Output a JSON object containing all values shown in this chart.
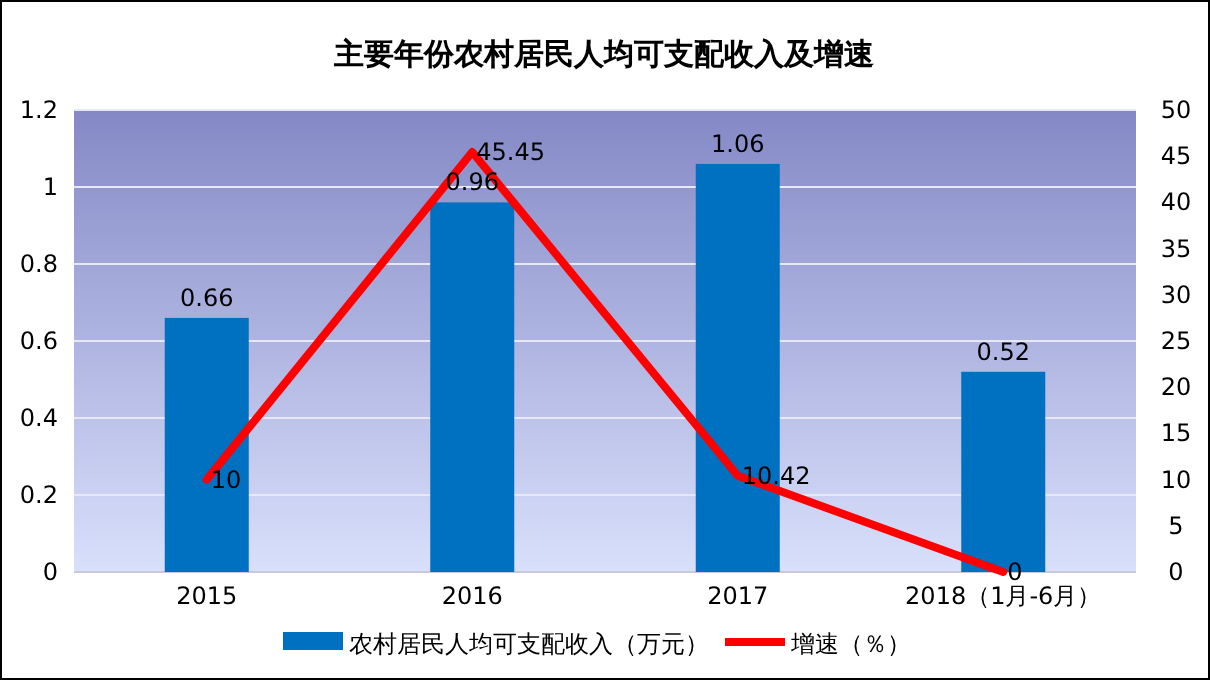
{
  "chart_data": {
    "type": "bar",
    "title": "主要年份农村居民人均可支配收入及增速",
    "categories": [
      "2015",
      "2016",
      "2017",
      "2018（1月-6月）"
    ],
    "series": [
      {
        "name": "农村居民人均可支配收入（万元）",
        "color": "#0070c0",
        "values": [
          0.66,
          0.96,
          1.06,
          0.52
        ]
      },
      {
        "name": "增速（％）",
        "type": "line",
        "axis": "y2",
        "color": "#ff0000",
        "values": [
          10,
          45.45,
          10.42,
          0
        ]
      }
    ],
    "ylim": [
      0,
      1.2
    ],
    "yticks": [
      0,
      0.2,
      0.4,
      0.6,
      0.8,
      1,
      1.2
    ],
    "y2lim": [
      0,
      50
    ],
    "y2ticks": [
      0,
      5,
      10,
      15,
      20,
      25,
      30,
      35,
      40,
      45,
      50
    ],
    "grid": "y",
    "legend": "bottom",
    "data_labels": true
  }
}
